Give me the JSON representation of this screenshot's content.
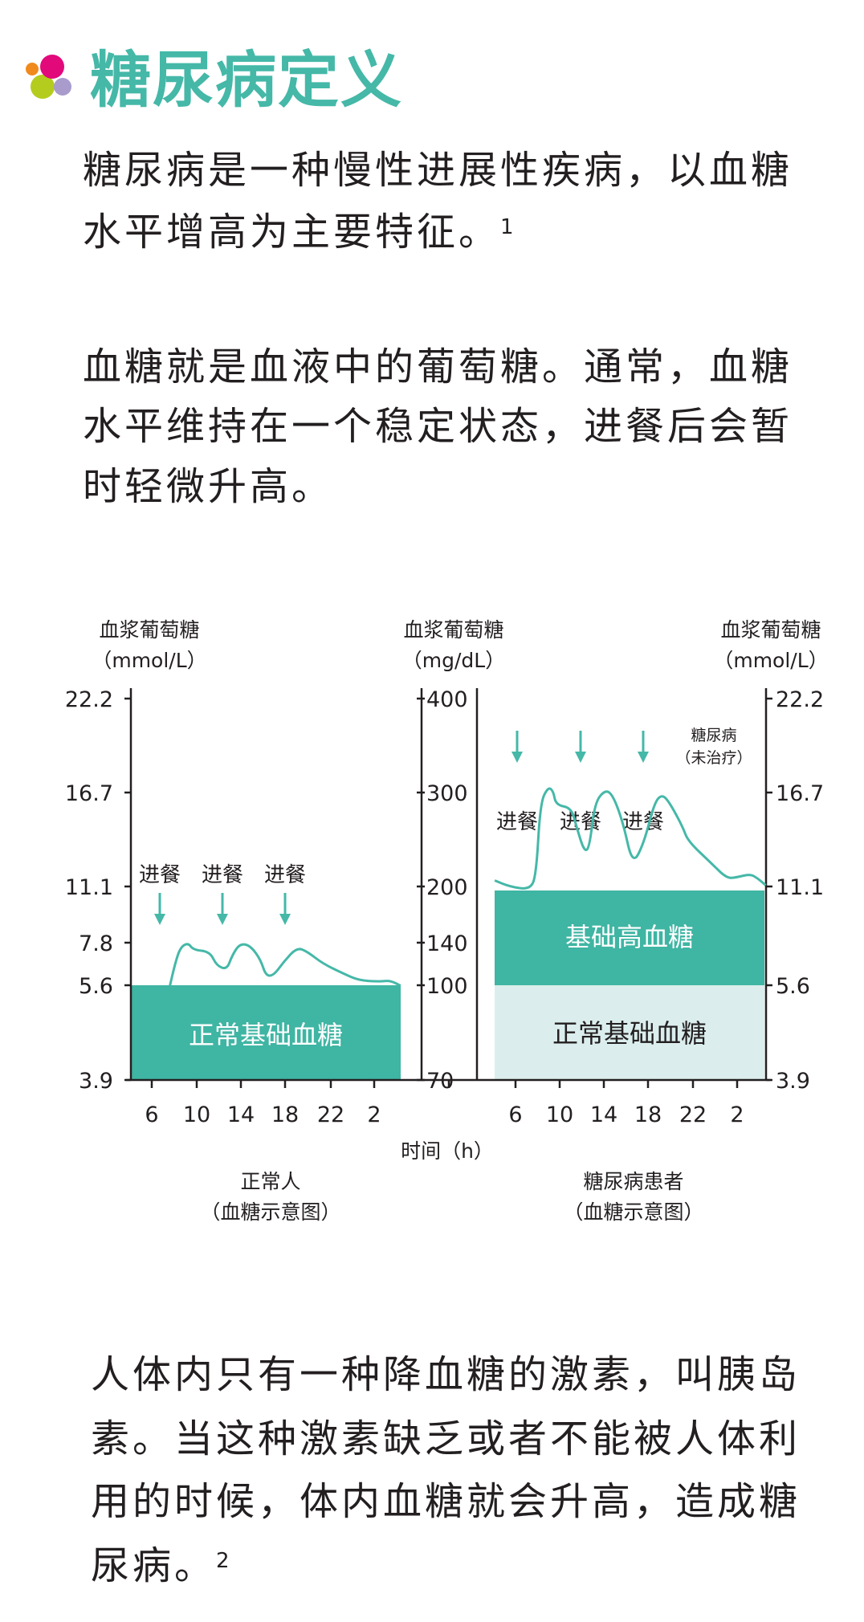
{
  "title": "糖尿病定义",
  "colors": {
    "accent": "#45b8a8",
    "box": "#3fb5a3",
    "light_box": "#dbeeed",
    "text": "#231f20"
  },
  "paragraphs": [
    {
      "lines": [
        "糖尿病是一种慢性进展性疾病，以血糖",
        "水平增高为主要特征。"
      ],
      "footnote": "1"
    },
    {
      "lines": [
        "血糖就是血液中的葡萄糖。通常，血糖",
        "水平维持在一个稳定状态，进餐后会暂",
        "时轻微升高。"
      ],
      "footnote": ""
    },
    {
      "lines": [
        "人体内只有一种降血糖的激素，叫胰岛",
        "素。当这种激素缺乏或者不能被人体利",
        "用的时候，体内血糖就会升高，造成糖",
        "尿病。"
      ],
      "footnote": "2"
    }
  ],
  "chart_data": {
    "type": "line",
    "axes": {
      "left": {
        "title": "血浆葡萄糖",
        "unit": "（mmol/L）",
        "ticks": [
          "22.2",
          "16.7",
          "11.1",
          "7.8",
          "5.6",
          "3.9"
        ]
      },
      "middle": {
        "title": "血浆葡萄糖",
        "unit": "（mg/dL）",
        "ticks": [
          "400",
          "300",
          "200",
          "140",
          "100",
          "70"
        ]
      },
      "right": {
        "title": "血浆葡萄糖",
        "unit": "（mmol/L）",
        "ticks": [
          "22.2",
          "16.7",
          "11.1",
          "5.6",
          "3.9"
        ]
      },
      "x_ticks": [
        "6",
        "10",
        "14",
        "18",
        "22",
        "2"
      ],
      "xlabel": "时间（h）"
    },
    "panels": [
      {
        "name": "正常人",
        "subtitle": "（血糖示意图）",
        "meal_label": "进餐",
        "meals": 3,
        "baseline_label": "正常基础血糖"
      },
      {
        "name": "糖尿病患者",
        "subtitle": "（血糖示意图）",
        "meal_label": "进餐",
        "meals": 3,
        "high_label": "基础高血糖",
        "baseline_label": "正常基础血糖",
        "note": "糖尿病",
        "note_sub": "（未治疗）"
      }
    ]
  }
}
